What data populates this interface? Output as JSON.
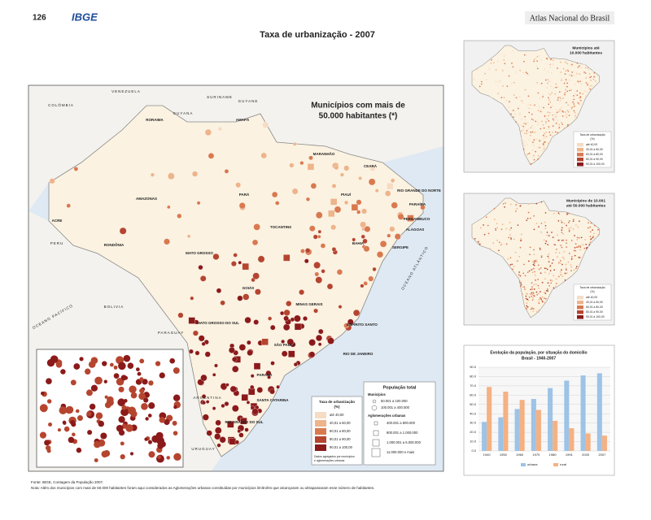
{
  "header": {
    "page_number": "126",
    "logo": "IBGE",
    "atlas_title": "Atlas Nacional do Brasil"
  },
  "title": "Taxa de urbanização - 2007",
  "main_map": {
    "title": [
      "Municípios com mais de",
      "50.000 habitantes (*)"
    ],
    "labels": [
      "COLÔMBIA",
      "VENEZUELA",
      "GUYANA",
      "SURINAME",
      "GUYANE",
      "PERU",
      "BOLIVIA",
      "PARAGUAY",
      "ARGENTINA",
      "URUGUAY",
      "OCEANO PACÍFICO",
      "OCEANO ATLÂNTICO",
      "RORAIMA",
      "AMAPÁ",
      "AMAZONAS",
      "PARÁ",
      "MARANHÃO",
      "CEARÁ",
      "RIO GRANDE DO NORTE",
      "PARAÍBA",
      "PERNAMBUCO",
      "ALAGOAS",
      "SERGIPE",
      "BAHIA",
      "PIAUÍ",
      "TOCANTINS",
      "ACRE",
      "RONDÔNIA",
      "MATO GROSSO",
      "GOIÁS",
      "MINAS GERAIS",
      "ESPÍRITO SANTO",
      "MATO GROSSO DO SUL",
      "SÃO PAULO",
      "RIO DE JANEIRO",
      "PARANÁ",
      "SANTA CATARINA",
      "RIO GRANDE DO SUL"
    ],
    "inset_labels": [
      "MINAS GERAIS",
      "SÃO PAULO",
      "Belo Horizonte",
      "São Paulo",
      "Rio de Janeiro"
    ],
    "rate_legend": {
      "title": [
        "Taxa de urbanização",
        "(%)"
      ],
      "items": [
        "até 40,00",
        "40,01 a 60,00",
        "60,01 a 80,00",
        "80,01 a 90,00",
        "90,01 a 100,00"
      ],
      "note": [
        "Dados agregados por municípios",
        "e aglomerações urbanas"
      ]
    },
    "pop_legend": {
      "title": "População total",
      "municipios": "Municípios",
      "municipios_items": [
        "50.001 a 100.000",
        "100.001 a 400.000"
      ],
      "aglomeracoes": "Aglomerações urbanas",
      "aglomeracoes_items": [
        "400.001 a 800.000",
        "800.001 a 1.000.000",
        "1.000.001 a 6.000.000",
        "11.000.000 e mais"
      ]
    }
  },
  "small_maps": [
    {
      "title": [
        "Municípios até",
        "10.000 habitantes"
      ]
    },
    {
      "title": [
        "Municípios de 10.001",
        "até 50.000 habitantes"
      ]
    }
  ],
  "chart_data": {
    "type": "bar",
    "title": [
      "Evolução da população, por situação do domicílio",
      "Brasil - 1940-2007"
    ],
    "categories": [
      "1940",
      "1950",
      "1960",
      "1970",
      "1980",
      "1991",
      "2000",
      "2007"
    ],
    "series": [
      {
        "name": "urbana",
        "color": "#9dc3e6",
        "values": [
          31.2,
          36.2,
          45.1,
          55.9,
          67.6,
          75.6,
          81.2,
          83.5
        ]
      },
      {
        "name": "rural",
        "color": "#f4b183",
        "values": [
          68.8,
          63.8,
          54.9,
          44.1,
          32.4,
          24.4,
          18.8,
          16.5
        ]
      }
    ],
    "ylim": [
      0,
      90
    ],
    "yticks": [
      {
        "value": 0,
        "label": "0.0"
      },
      {
        "value": 10,
        "label": "10.0"
      },
      {
        "value": 20,
        "label": "20.0"
      },
      {
        "value": 30,
        "label": "30.0"
      },
      {
        "value": 40,
        "label": "40.0"
      },
      {
        "value": 50,
        "label": "50.0"
      },
      {
        "value": 60,
        "label": "60.0"
      },
      {
        "value": 70,
        "label": "70.0"
      },
      {
        "value": 80,
        "label": "80.0"
      },
      {
        "value": 90,
        "label": "90.0"
      }
    ],
    "grid": true
  },
  "footer": {
    "source": "Fonte: IBGE, Contagem da População 2007.",
    "note": "Nota: Além dos municípios com mais de 50.000 habitantes foram aqui considerados as Aglomerações urbanas constituídas por municípios limítrofes que alcançaram ou ultrapassaram esse número de habitantes."
  }
}
